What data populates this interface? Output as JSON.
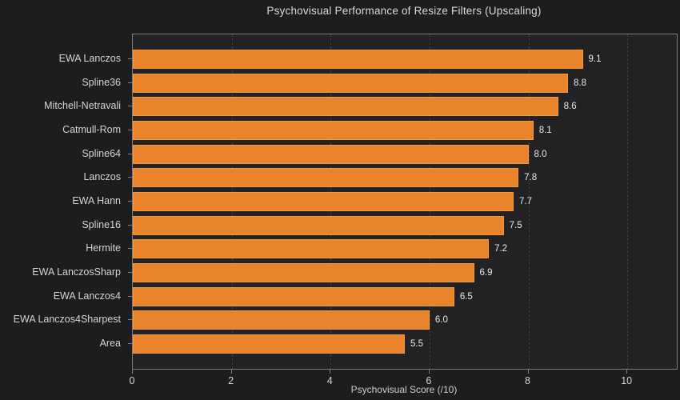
{
  "chart_data": {
    "type": "bar",
    "orientation": "horizontal",
    "title": "Psychovisual Performance of Resize Filters (Upscaling)",
    "categories": [
      "EWA Lanczos",
      "Spline36",
      "Mitchell-Netravali",
      "Catmull-Rom",
      "Spline64",
      "Lanczos",
      "EWA Hann",
      "Spline16",
      "Hermite",
      "EWA LanczosSharp",
      "EWA Lanczos4",
      "EWA Lanczos4Sharpest",
      "Area"
    ],
    "values": [
      9.1,
      8.8,
      8.6,
      8.1,
      8.0,
      7.8,
      7.7,
      7.5,
      7.2,
      6.9,
      6.5,
      6.0,
      5.5
    ],
    "value_label_decimals": 1,
    "xlabel": "Psychovisual Score (/10)",
    "xlim": [
      0,
      11
    ],
    "xticks": [
      0,
      2,
      4,
      6,
      8,
      10
    ],
    "grid": "dashed-vertical",
    "legend": "none",
    "colors": {
      "background": "#1d1d1f",
      "plot_background": "#222225",
      "bar_fill": "#e8832c",
      "bar_edge": "#f09a40",
      "grid_line": "#3d3d3f",
      "spine": "#7d7d7d",
      "title_text": "#d9d9d9",
      "tick_text": "#d4d4d4",
      "value_text": "#e9e9e9",
      "axis_label_text": "#cfcfcf"
    }
  }
}
